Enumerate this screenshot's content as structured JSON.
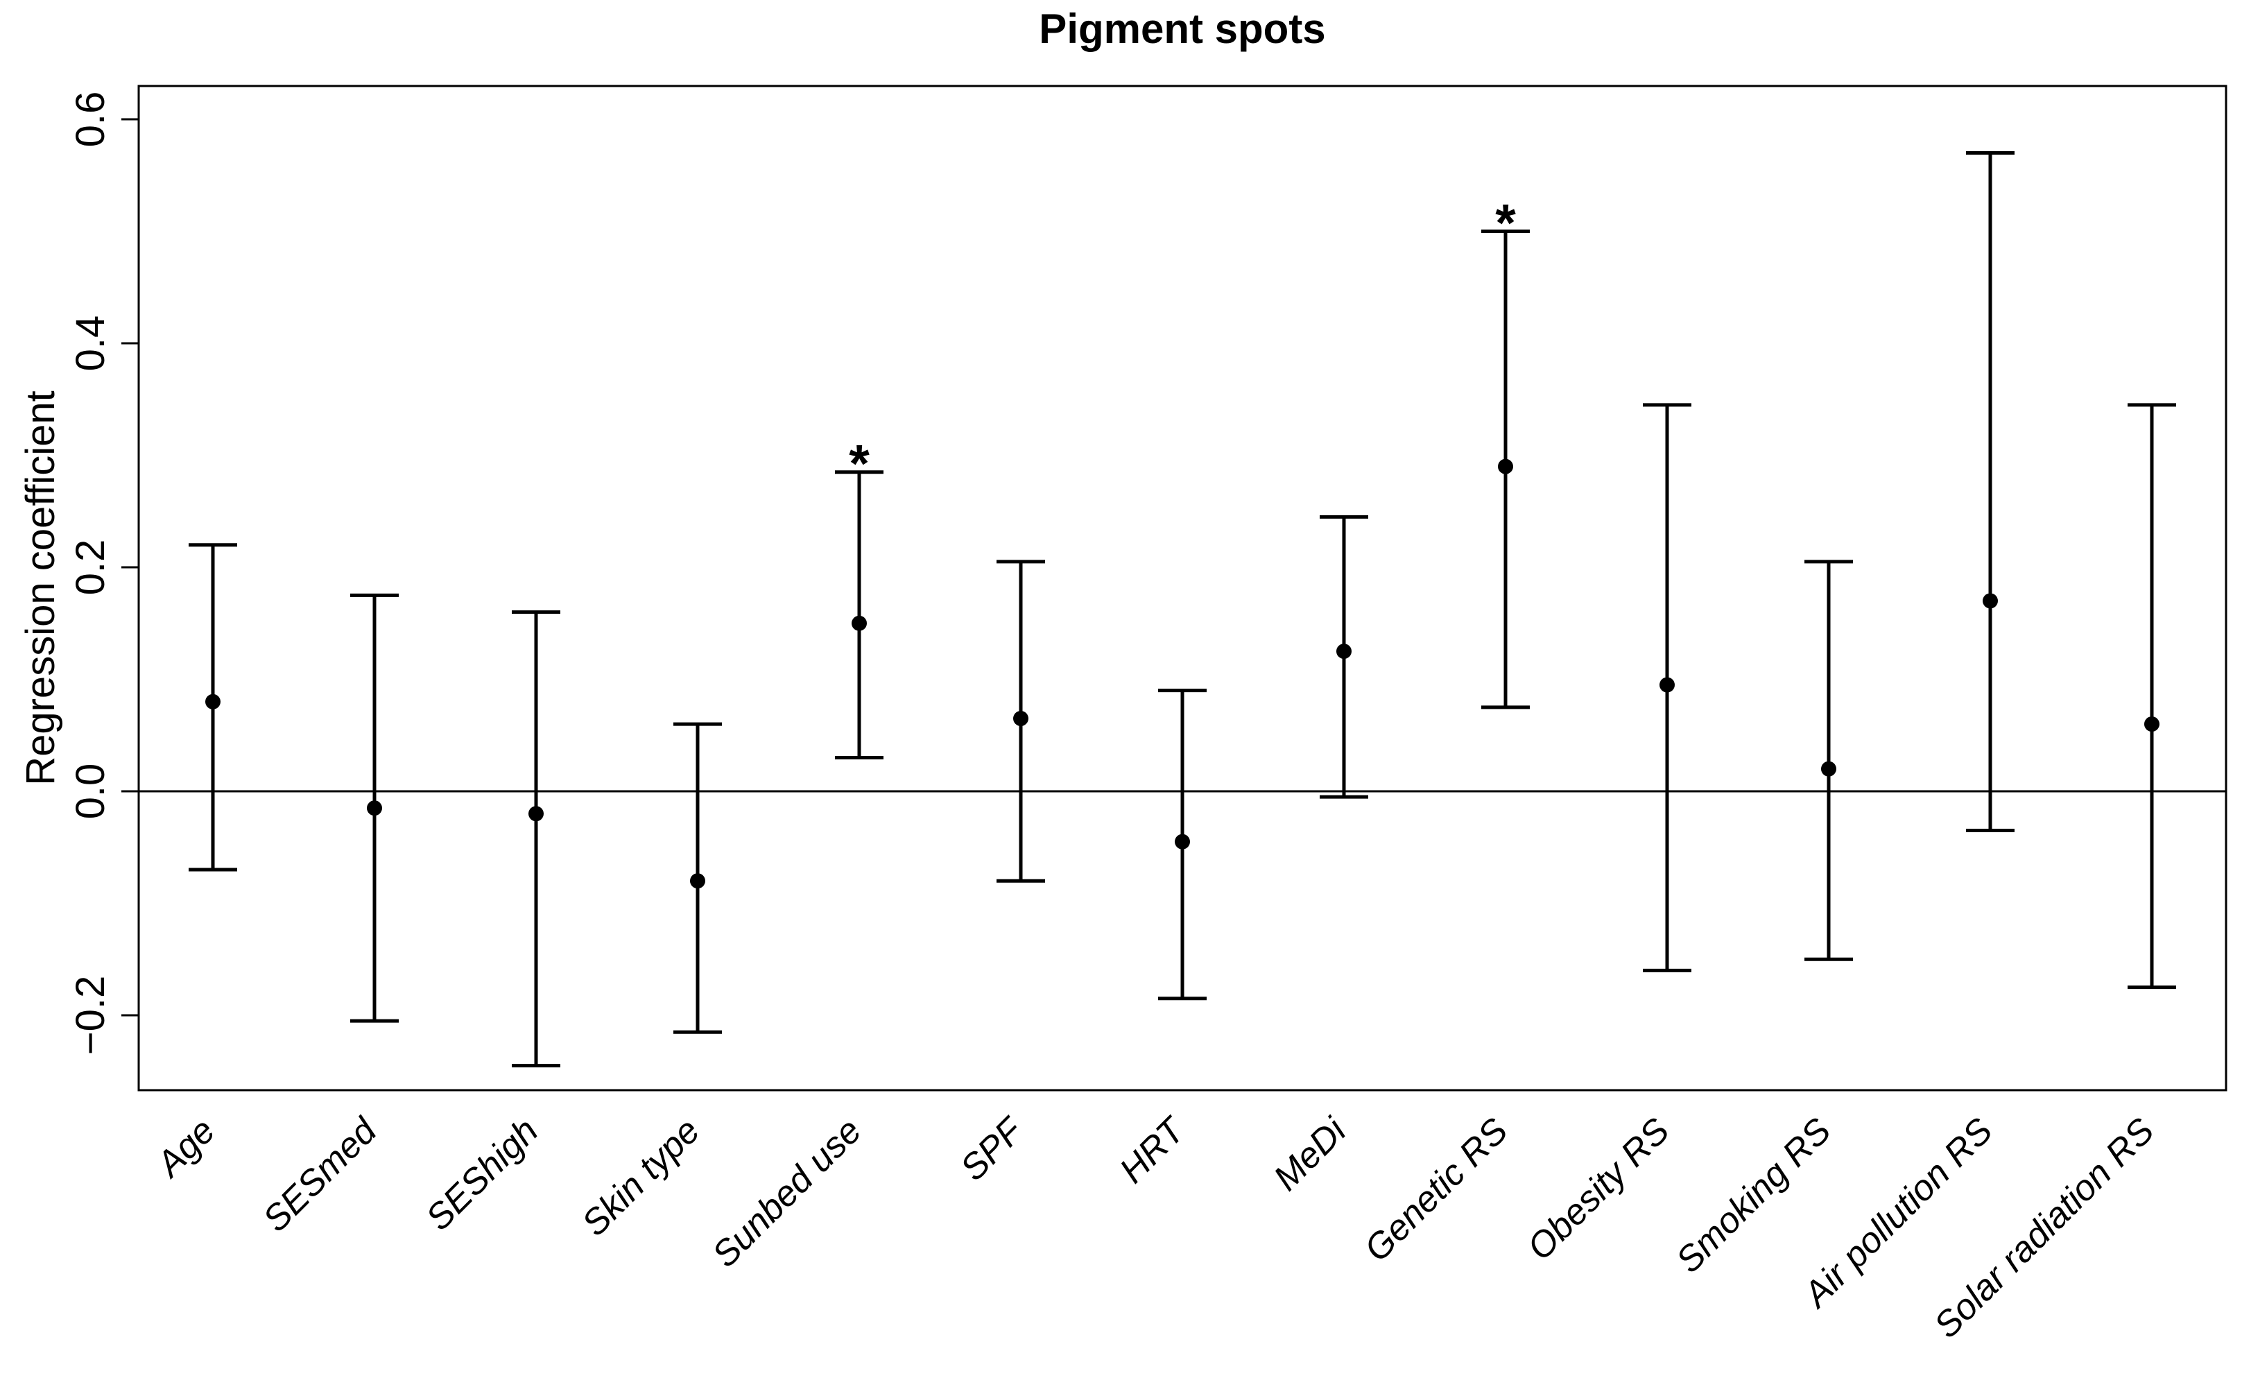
{
  "title": "Pigment spots",
  "y_axis": {
    "label": "Regression coefficient",
    "tick_labels": [
      "0.6",
      "0.4",
      "0.2",
      "0.0",
      "−0.2"
    ]
  },
  "x_axis": {
    "label": "",
    "categories": [
      "Age",
      "SESmed",
      "SEShigh",
      "Skin type",
      "Sunbed use",
      "SPF",
      "HRT",
      "MeDi",
      "Genetic RS",
      "Obesity RS",
      "Smoking RS",
      "Air pollution RS",
      "Solar radiation RS"
    ]
  },
  "chart_data": {
    "type": "scatter",
    "subtype": "forest-plot-error-bars",
    "title": "Pigment spots",
    "xlabel": "",
    "ylabel": "Regression coefficient",
    "ylim": [
      -0.27,
      0.63
    ],
    "grid": false,
    "legend": false,
    "reference_line_y": 0.0,
    "significance_marker": "*",
    "colors": {
      "foreground": "#000000",
      "background": "#ffffff"
    },
    "yticks": [
      {
        "value": 0.6,
        "label": "0.6"
      },
      {
        "value": 0.4,
        "label": "0.4"
      },
      {
        "value": 0.2,
        "label": "0.2"
      },
      {
        "value": 0.0,
        "label": "0.0"
      },
      {
        "value": -0.2,
        "label": "−0.2"
      }
    ],
    "categories": [
      "Age",
      "SESmed",
      "SEShigh",
      "Skin type",
      "Sunbed use",
      "SPF",
      "HRT",
      "MeDi",
      "Genetic RS",
      "Obesity RS",
      "Smoking RS",
      "Air pollution RS",
      "Solar radiation RS"
    ],
    "points": [
      {
        "category": "Age",
        "estimate": 0.08,
        "ci_low": -0.07,
        "ci_high": 0.22,
        "significant": false
      },
      {
        "category": "SESmed",
        "estimate": -0.015,
        "ci_low": -0.205,
        "ci_high": 0.175,
        "significant": false
      },
      {
        "category": "SEShigh",
        "estimate": -0.02,
        "ci_low": -0.245,
        "ci_high": 0.16,
        "significant": false
      },
      {
        "category": "Skin type",
        "estimate": -0.08,
        "ci_low": -0.215,
        "ci_high": 0.06,
        "significant": false
      },
      {
        "category": "Sunbed use",
        "estimate": 0.15,
        "ci_low": 0.03,
        "ci_high": 0.285,
        "significant": true
      },
      {
        "category": "SPF",
        "estimate": 0.065,
        "ci_low": -0.08,
        "ci_high": 0.205,
        "significant": false
      },
      {
        "category": "HRT",
        "estimate": -0.045,
        "ci_low": -0.185,
        "ci_high": 0.09,
        "significant": false
      },
      {
        "category": "MeDi",
        "estimate": 0.125,
        "ci_low": -0.005,
        "ci_high": 0.245,
        "significant": false
      },
      {
        "category": "Genetic RS",
        "estimate": 0.29,
        "ci_low": 0.075,
        "ci_high": 0.5,
        "significant": true
      },
      {
        "category": "Obesity RS",
        "estimate": 0.095,
        "ci_low": -0.16,
        "ci_high": 0.345,
        "significant": false
      },
      {
        "category": "Smoking RS",
        "estimate": 0.02,
        "ci_low": -0.15,
        "ci_high": 0.205,
        "significant": false
      },
      {
        "category": "Air pollution RS",
        "estimate": 0.17,
        "ci_low": -0.035,
        "ci_high": 0.57,
        "significant": false
      },
      {
        "category": "Solar radiation RS",
        "estimate": 0.06,
        "ci_low": -0.175,
        "ci_high": 0.345,
        "significant": false
      }
    ]
  }
}
